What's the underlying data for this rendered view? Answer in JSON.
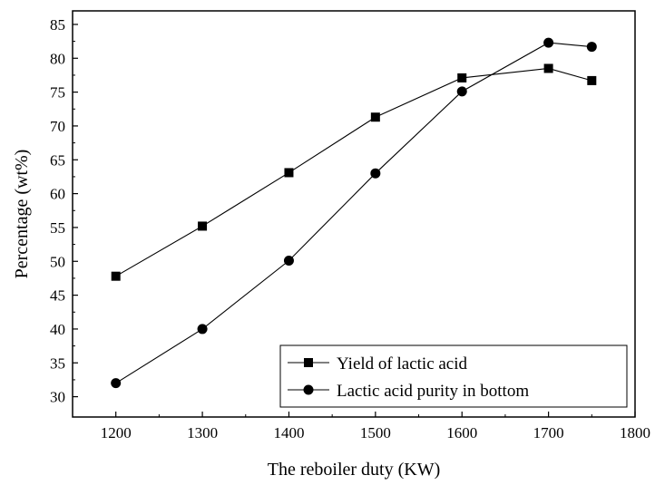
{
  "chart_data": {
    "type": "line",
    "title": "",
    "xlabel": "The reboiler duty (KW)",
    "ylabel": "Percentage (wt%)",
    "xlim": [
      1150,
      1800
    ],
    "ylim": [
      27,
      87
    ],
    "xticks": [
      1200,
      1300,
      1400,
      1500,
      1600,
      1700,
      1800
    ],
    "yticks": [
      30,
      35,
      40,
      45,
      50,
      55,
      60,
      65,
      70,
      75,
      80,
      85
    ],
    "grid": false,
    "legend_position": "bottom-right",
    "x": [
      1200,
      1300,
      1400,
      1500,
      1600,
      1700,
      1750
    ],
    "series": [
      {
        "name": "Yield of lactic acid",
        "marker": "square",
        "values": [
          47.8,
          55.2,
          63.1,
          71.3,
          77.1,
          78.5,
          76.7
        ]
      },
      {
        "name": "Lactic acid purity in bottom",
        "marker": "circle",
        "values": [
          32.0,
          40.0,
          50.1,
          63.0,
          75.1,
          82.3,
          81.7
        ]
      }
    ]
  }
}
